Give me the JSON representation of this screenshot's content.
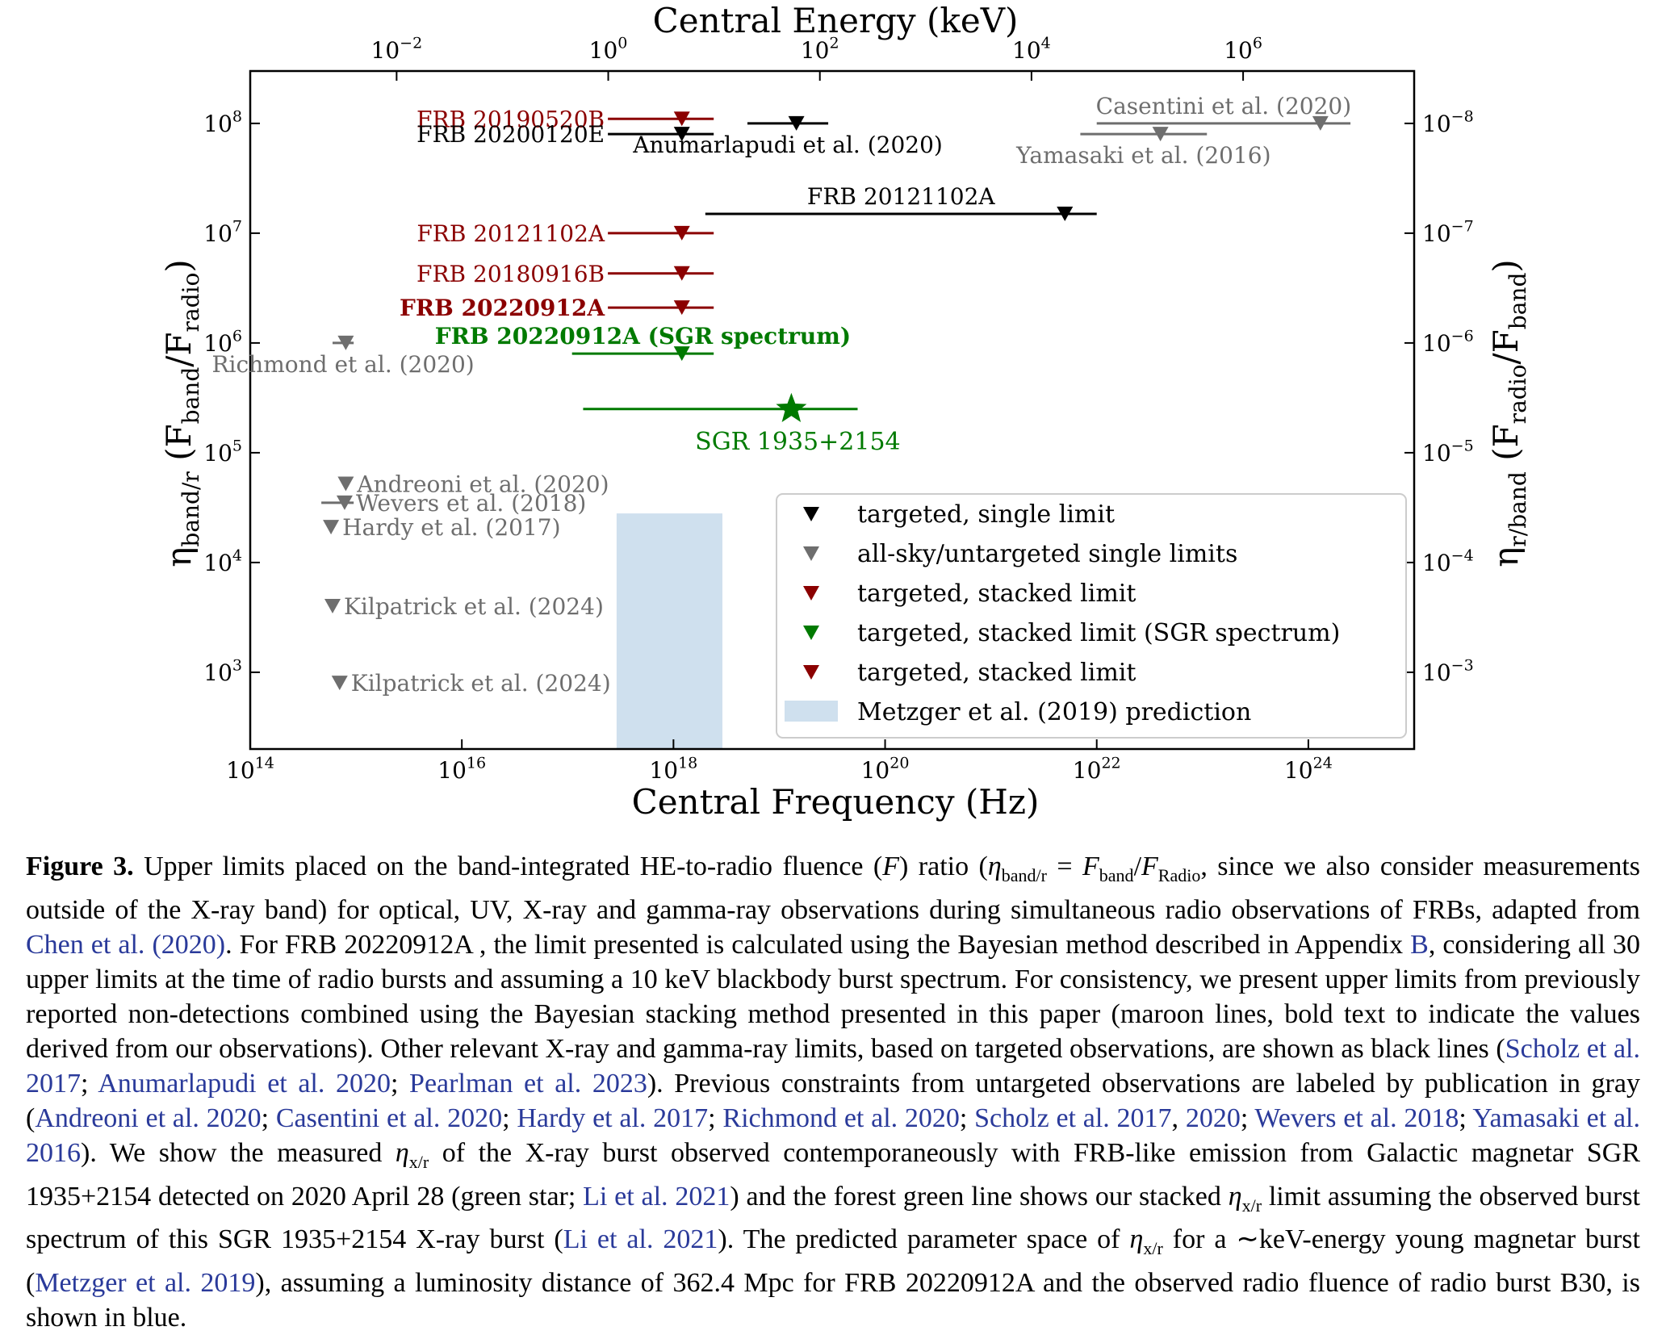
{
  "figure": {
    "top_axis_label": "Central Energy (keV)",
    "bottom_axis_label": "Central Frequency (Hz)",
    "left_axis_label": "η_band/r (F_band/F_radio)",
    "right_axis_label": "η_r/band (F_radio/F_band)",
    "colors": {
      "black": "#000000",
      "gray": "#6e6e6e",
      "maroon": "#8b0000",
      "green": "#007a00",
      "blue_fill": "#cfe0ee"
    }
  },
  "chart_data": {
    "type": "scatter",
    "x_scale": "log",
    "y_scale": "log",
    "xlim": [
      100000000000000.0,
      1e+25
    ],
    "ylim": [
      200,
      300000000.0
    ],
    "x_ticks": [
      {
        "value": 100000000000000.0,
        "base": "10",
        "exp": "14"
      },
      {
        "value": 1e+16,
        "base": "10",
        "exp": "16"
      },
      {
        "value": 1e+18,
        "base": "10",
        "exp": "18"
      },
      {
        "value": 1e+20,
        "base": "10",
        "exp": "20"
      },
      {
        "value": 1e+22,
        "base": "10",
        "exp": "22"
      },
      {
        "value": 1e+24,
        "base": "10",
        "exp": "24"
      }
    ],
    "top_ticks": [
      {
        "value": 2418000000000000.0,
        "base": "10",
        "exp": "−2"
      },
      {
        "value": 2.418e+17,
        "base": "10",
        "exp": "0"
      },
      {
        "value": 2.418e+19,
        "base": "10",
        "exp": "2"
      },
      {
        "value": 2.418e+21,
        "base": "10",
        "exp": "4"
      },
      {
        "value": 2.418e+23,
        "base": "10",
        "exp": "6"
      }
    ],
    "y_ticks": [
      {
        "value": 1000.0,
        "base": "10",
        "exp": "3"
      },
      {
        "value": 10000.0,
        "base": "10",
        "exp": "4"
      },
      {
        "value": 100000.0,
        "base": "10",
        "exp": "5"
      },
      {
        "value": 1000000.0,
        "base": "10",
        "exp": "6"
      },
      {
        "value": 10000000.0,
        "base": "10",
        "exp": "7"
      },
      {
        "value": 100000000.0,
        "base": "10",
        "exp": "8"
      }
    ],
    "right_ticks": [
      {
        "value": 1000.0,
        "base": "10",
        "exp": "−3"
      },
      {
        "value": 10000.0,
        "base": "10",
        "exp": "−4"
      },
      {
        "value": 100000.0,
        "base": "10",
        "exp": "−5"
      },
      {
        "value": 1000000.0,
        "base": "10",
        "exp": "−6"
      },
      {
        "value": 10000000.0,
        "base": "10",
        "exp": "−7"
      },
      {
        "value": 100000000.0,
        "base": "10",
        "exp": "−8"
      }
    ],
    "limits": [
      {
        "label": "FRB 20190520B",
        "color": "maroon",
        "bold": false,
        "x": 1.2e+18,
        "xmin": 2.4e+17,
        "xmax": 2.4e+18,
        "y": 110000000.0,
        "label_side": "left"
      },
      {
        "label": "FRB 20200120E",
        "color": "black",
        "bold": false,
        "x": 1.2e+18,
        "xmin": 2.4e+17,
        "xmax": 2.4e+18,
        "y": 80000000.0,
        "label_side": "left"
      },
      {
        "label": "Anumarlapudi et al. (2020)",
        "color": "black",
        "bold": false,
        "x": 1.45e+19,
        "xmin": 5e+18,
        "xmax": 2.9e+19,
        "y": 100000000.0,
        "label_side": "below"
      },
      {
        "label": "Casentini et al. (2020)",
        "color": "gray",
        "bold": false,
        "x": 1.3e+24,
        "xmin": 1e+22,
        "xmax": 2.5e+24,
        "y": 100000000.0,
        "label_side": "above"
      },
      {
        "label": "Yamasaki et al. (2016)",
        "color": "gray",
        "bold": false,
        "x": 4e+22,
        "xmin": 7e+21,
        "xmax": 1.1e+23,
        "y": 80000000.0,
        "label_side": "below"
      },
      {
        "label": "FRB 20121102A",
        "color": "black",
        "bold": false,
        "x": 5e+21,
        "xmin": 2e+18,
        "xmax": 1e+22,
        "y": 15000000.0,
        "label_side": "above"
      },
      {
        "label": "FRB 20121102A",
        "color": "maroon",
        "bold": false,
        "x": 1.2e+18,
        "xmin": 2.4e+17,
        "xmax": 2.4e+18,
        "y": 10000000.0,
        "label_side": "left"
      },
      {
        "label": "FRB 20180916B",
        "color": "maroon",
        "bold": false,
        "x": 1.2e+18,
        "xmin": 2.4e+17,
        "xmax": 2.4e+18,
        "y": 4300000.0,
        "label_side": "left"
      },
      {
        "label": "FRB 20220912A",
        "color": "maroon",
        "bold": true,
        "x": 1.2e+18,
        "xmin": 2.4e+17,
        "xmax": 2.4e+18,
        "y": 2100000.0,
        "label_side": "left"
      },
      {
        "label": "FRB 20220912A (SGR spectrum)",
        "color": "green",
        "bold": true,
        "x": 1.2e+18,
        "xmin": 1.1e+17,
        "xmax": 2.4e+18,
        "y": 800000.0,
        "label_side": "above"
      },
      {
        "label": "Richmond et al. (2020)",
        "color": "gray",
        "bold": false,
        "x": 800000000000000.0,
        "xmin": 600000000000000.0,
        "xmax": 950000000000000.0,
        "y": 1000000.0,
        "label_side": "below"
      },
      {
        "label": "Andreoni et al. (2020)",
        "color": "gray",
        "bold": false,
        "x": 800000000000000.0,
        "y": 52000.0,
        "label_side": "right"
      },
      {
        "label": "Wevers et al. (2018)",
        "color": "gray",
        "bold": false,
        "x": 780000000000000.0,
        "xmin": 470000000000000.0,
        "xmax": 950000000000000.0,
        "y": 35000.0,
        "label_side": "right"
      },
      {
        "label": "Hardy et al. (2017)",
        "color": "gray",
        "bold": false,
        "x": 580000000000000.0,
        "y": 21000.0,
        "label_side": "right"
      },
      {
        "label": "Kilpatrick et al. (2024)",
        "color": "gray",
        "bold": false,
        "x": 600000000000000.0,
        "y": 4000.0,
        "label_side": "right"
      },
      {
        "label": "Kilpatrick et al. (2024)",
        "color": "gray",
        "bold": false,
        "x": 700000000000000.0,
        "y": 800,
        "label_side": "right"
      }
    ],
    "detection": {
      "label": "SGR 1935+2154",
      "color": "green",
      "x": 1.3e+19,
      "xmin": 1.4e+17,
      "xmax": 5.5e+19,
      "y": 250000.0
    },
    "prediction_region": {
      "label": "Metzger et al. (2019) prediction",
      "xmin": 2.9e+17,
      "xmax": 2.9e+18,
      "ymin": 200,
      "ymax": 28000.0
    },
    "legend": {
      "placement": "lower right",
      "entries": [
        {
          "label": "targeted, single limit",
          "kind": "marker",
          "color": "black"
        },
        {
          "label": "all-sky/untargeted single limits",
          "kind": "marker",
          "color": "gray"
        },
        {
          "label": "targeted, stacked limit",
          "kind": "marker",
          "color": "maroon"
        },
        {
          "label": "targeted, stacked limit (SGR spectrum)",
          "kind": "marker",
          "color": "green"
        },
        {
          "label": "targeted, stacked limit",
          "kind": "marker",
          "color": "maroon"
        },
        {
          "label": "Metzger et al. (2019) prediction",
          "kind": "patch",
          "color": "blue_fill"
        }
      ]
    }
  },
  "caption": {
    "label": "Figure 3.",
    "p1": " Upper limits placed on the band-integrated HE-to-radio fluence (",
    "F": "F",
    "p2": ") ratio (",
    "eta": "η",
    "sub_band_r": "band/r",
    "eq": " = ",
    "Fband": "F",
    "sub_band": "band",
    "slash": "/",
    "Fradio": "F",
    "sub_radio": "Radio",
    "p3": ", since we also consider measurements outside of the X-ray band) for optical, UV, X-ray and gamma-ray observations during simultaneous radio observations of FRBs, adapted from ",
    "c_chen": "Chen et al.",
    "c_chen_y": "(2020)",
    "p4": ".  For FRB 20220912A , the limit presented is calculated using the Bayesian method described in Appendix ",
    "c_appB": "B",
    "p5": ", considering all 30 upper limits at the time of radio bursts and assuming a 10 keV blackbody burst spectrum.  For consistency, we present upper limits from previously reported non-detections combined using the Bayesian stacking method presented in this paper (maroon lines, bold text to indicate the values derived from our observations).  Other relevant X-ray and gamma-ray limits, based on targeted observations, are shown as black lines (",
    "c_scholz17": "Scholz et al. 2017",
    "sep1": "; ",
    "c_anum": "Anumarlapudi et al. 2020",
    "sep2": "; ",
    "c_pearl": "Pearlman et al. 2023",
    "p6": ").  Previous constraints from untargeted observations are labeled by publication in gray (",
    "c_andreoni": "Andreoni et al. 2020",
    "sep3": "; ",
    "c_casentini": "Casentini et al. 2020",
    "sep4": "; ",
    "c_hardy": "Hardy et al. 2017",
    "sep5": "; ",
    "c_richmond": "Richmond et al. 2020",
    "sep6": "; ",
    "c_scholz17b": "Scholz et al. 2017",
    "sep7": ", ",
    "c_2020": "2020",
    "sep8": "; ",
    "c_wevers": "Wevers et al. 2018",
    "sep9": "; ",
    "c_yamasaki": "Yamasaki et al. 2016",
    "p7": ").  We show the measured ",
    "eta2": "η",
    "sub_xr": "x/r",
    "p8": " of the X-ray burst observed contemporaneously with FRB-like emission from Galactic magnetar SGR 1935+2154 detected on 2020 April 28 (green star; ",
    "c_li21a": "Li et al. 2021",
    "p9": ") and the forest green line shows our stacked ",
    "eta3": "η",
    "sub_xr2": "x/r",
    "p10": " limit assuming the observed burst spectrum of this SGR 1935+2154 X-ray burst (",
    "c_li21b": "Li et al. 2021",
    "p11": ").  The predicted parameter space of ",
    "eta4": "η",
    "sub_xr3": "x/r",
    "p12": " for a ∼keV-energy young magnetar burst (",
    "c_metzger": "Metzger et al. 2019",
    "p13": "), assuming a luminosity distance of 362.4 Mpc for FRB 20220912A  and the observed radio fluence of radio burst B30, is shown in blue."
  }
}
